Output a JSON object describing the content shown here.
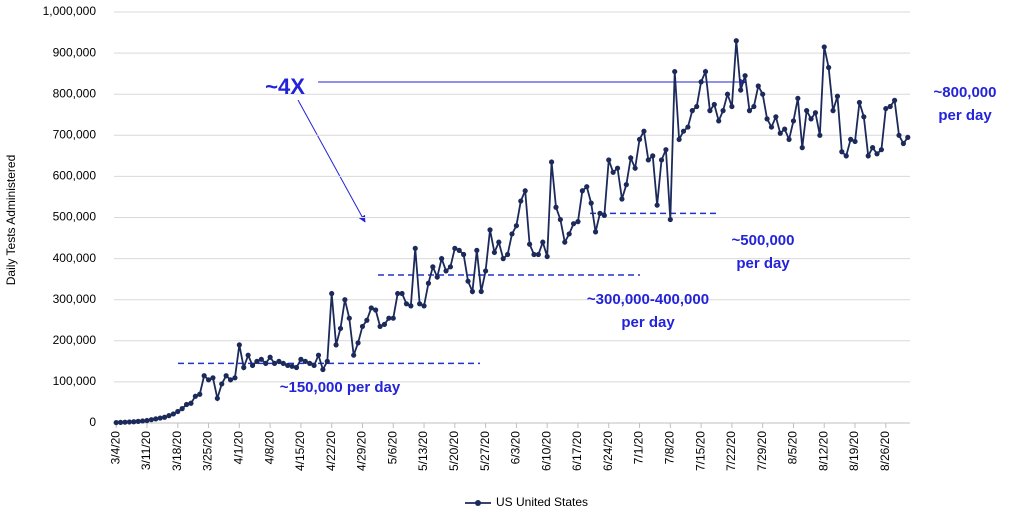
{
  "chart_data": {
    "type": "line",
    "y_label": "Daily Tests Administered",
    "categories": [
      "3/4/20",
      null,
      null,
      null,
      null,
      null,
      null,
      "3/11/20",
      null,
      null,
      null,
      null,
      null,
      null,
      "3/18/20",
      null,
      null,
      null,
      null,
      null,
      null,
      "3/25/20",
      null,
      null,
      null,
      null,
      null,
      null,
      "4/1/20",
      null,
      null,
      null,
      null,
      null,
      null,
      "4/8/20",
      null,
      null,
      null,
      null,
      null,
      null,
      "4/15/20",
      null,
      null,
      null,
      null,
      null,
      null,
      "4/22/20",
      null,
      null,
      null,
      null,
      null,
      null,
      "4/29/20",
      null,
      null,
      null,
      null,
      null,
      null,
      "5/6/20",
      null,
      null,
      null,
      null,
      null,
      null,
      "5/13/20",
      null,
      null,
      null,
      null,
      null,
      null,
      "5/20/20",
      null,
      null,
      null,
      null,
      null,
      null,
      "5/27/20",
      null,
      null,
      null,
      null,
      null,
      null,
      "6/3/20",
      null,
      null,
      null,
      null,
      null,
      null,
      "6/10/20",
      null,
      null,
      null,
      null,
      null,
      null,
      "6/17/20",
      null,
      null,
      null,
      null,
      null,
      null,
      "6/24/20",
      null,
      null,
      null,
      null,
      null,
      null,
      "7/1/20",
      null,
      null,
      null,
      null,
      null,
      null,
      "7/8/20",
      null,
      null,
      null,
      null,
      null,
      null,
      "7/15/20",
      null,
      null,
      null,
      null,
      null,
      null,
      "7/22/20",
      null,
      null,
      null,
      null,
      null,
      null,
      "7/29/20",
      null,
      null,
      null,
      null,
      null,
      null,
      "8/5/20",
      null,
      null,
      null,
      null,
      null,
      null,
      "8/12/20",
      null,
      null,
      null,
      null,
      null,
      null,
      "8/19/20",
      null,
      null,
      null,
      null,
      null,
      null,
      "8/26/20",
      null,
      null,
      null,
      null,
      null
    ],
    "series": [
      {
        "name": "US United States",
        "color": "#1b2a5a",
        "values": [
          1000,
          1500,
          2000,
          2500,
          3000,
          4000,
          5000,
          6000,
          8000,
          10000,
          12000,
          14000,
          18000,
          22000,
          28000,
          35000,
          45000,
          48000,
          65000,
          70000,
          115000,
          105000,
          110000,
          60000,
          95000,
          115000,
          105000,
          110000,
          190000,
          135000,
          165000,
          140000,
          150000,
          155000,
          145000,
          160000,
          145000,
          150000,
          145000,
          140000,
          138000,
          135000,
          155000,
          150000,
          145000,
          140000,
          165000,
          130000,
          150000,
          315000,
          190000,
          230000,
          300000,
          255000,
          165000,
          195000,
          235000,
          250000,
          280000,
          275000,
          235000,
          240000,
          255000,
          255000,
          315000,
          315000,
          290000,
          285000,
          425000,
          290000,
          285000,
          340000,
          380000,
          355000,
          400000,
          370000,
          380000,
          425000,
          420000,
          410000,
          345000,
          320000,
          420000,
          320000,
          370000,
          470000,
          415000,
          440000,
          400000,
          410000,
          460000,
          480000,
          540000,
          565000,
          435000,
          410000,
          410000,
          440000,
          405000,
          635000,
          525000,
          495000,
          440000,
          460000,
          485000,
          490000,
          565000,
          575000,
          535000,
          465000,
          510000,
          505000,
          640000,
          610000,
          620000,
          545000,
          580000,
          645000,
          620000,
          690000,
          710000,
          640000,
          650000,
          530000,
          640000,
          665000,
          495000,
          855000,
          690000,
          710000,
          720000,
          760000,
          770000,
          830000,
          855000,
          760000,
          775000,
          735000,
          760000,
          800000,
          770000,
          930000,
          810000,
          845000,
          760000,
          770000,
          820000,
          800000,
          740000,
          720000,
          745000,
          705000,
          715000,
          690000,
          735000,
          790000,
          670000,
          760000,
          740000,
          755000,
          700000,
          915000,
          865000,
          760000,
          795000,
          660000,
          650000,
          690000,
          685000,
          780000,
          745000,
          650000,
          670000,
          655000,
          665000,
          765000,
          770000,
          785000,
          700000,
          680000,
          695000
        ]
      }
    ],
    "ylim": [
      0,
      1000000
    ],
    "yticks": [
      0,
      {
        "value": 100000,
        "label": "100,000"
      },
      {
        "value": 200000,
        "label": "200,000"
      },
      {
        "value": 300000,
        "label": "300,000"
      },
      {
        "value": 400000,
        "label": "400,000"
      },
      {
        "value": 500000,
        "label": "500,000"
      },
      {
        "value": 600000,
        "label": "600,000"
      },
      {
        "value": 700000,
        "label": "700,000"
      },
      {
        "value": 800000,
        "label": "800,000"
      },
      {
        "value": 900000,
        "label": "900,000"
      },
      {
        "value": 1000000,
        "label": "1,000,000"
      }
    ],
    "grid": true,
    "legend": "bottom",
    "reference_lines": [
      145000,
      360000,
      510000
    ],
    "reference_color": "#2233cc",
    "annotations": [
      [
        "~4X"
      ],
      [
        "~800,000",
        "per day"
      ],
      [
        "~500,000",
        "per day"
      ],
      [
        "~300,000-400,000",
        "per day"
      ],
      [
        "~150,000 per day"
      ]
    ],
    "annotation_color": "#2323d9"
  }
}
